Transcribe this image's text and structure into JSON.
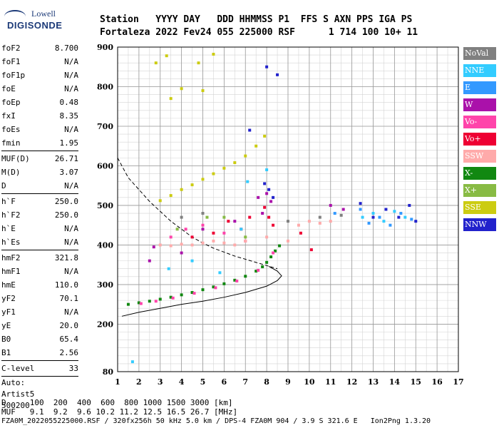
{
  "logo": {
    "brand": "Lowell",
    "name": "DIGISONDE"
  },
  "header": {
    "row1": "Station   YYYY DAY   DDD HHMMSS P1  FFS S AXN PPS IGA PS",
    "row2": "Fortaleza 2022 Fev24 055 225000 RSF      1 714 100 10+ 11"
  },
  "params": {
    "group1": [
      {
        "k": "foF2",
        "v": "8.700"
      },
      {
        "k": "foF1",
        "v": "N/A"
      },
      {
        "k": "foF1p",
        "v": "N/A"
      },
      {
        "k": "foE",
        "v": "N/A"
      },
      {
        "k": "foEp",
        "v": "0.48"
      },
      {
        "k": "fxI",
        "v": "8.35"
      },
      {
        "k": "foEs",
        "v": "N/A"
      },
      {
        "k": "fmin",
        "v": "1.95"
      }
    ],
    "group2": [
      {
        "k": "MUF(D)",
        "v": "26.71"
      },
      {
        "k": "M(D)",
        "v": "3.07"
      },
      {
        "k": "D",
        "v": "N/A"
      }
    ],
    "group3": [
      {
        "k": "h`F",
        "v": "250.0"
      },
      {
        "k": "h`F2",
        "v": "250.0"
      },
      {
        "k": "h`E",
        "v": "N/A"
      },
      {
        "k": "h`Es",
        "v": "N/A"
      }
    ],
    "group4": [
      {
        "k": "hmF2",
        "v": "321.8"
      },
      {
        "k": "hmF1",
        "v": "N/A"
      },
      {
        "k": "hmE",
        "v": "110.0"
      },
      {
        "k": "yF2",
        "v": "70.1"
      },
      {
        "k": "yF1",
        "v": "N/A"
      },
      {
        "k": "yE",
        "v": "20.0"
      },
      {
        "k": "B0",
        "v": "65.4"
      },
      {
        "k": "B1",
        "v": "2.56"
      }
    ],
    "group5": [
      {
        "k": "C-level",
        "v": "33"
      }
    ],
    "auto": [
      "Auto:",
      "Artist5",
      "500200"
    ]
  },
  "legend": [
    {
      "label": "NoVal",
      "color": "#808080"
    },
    {
      "label": "NNE",
      "color": "#33ccff"
    },
    {
      "label": "E",
      "color": "#3399ff"
    },
    {
      "label": "W",
      "color": "#aa11aa"
    },
    {
      "label": "Vo-",
      "color": "#ff44aa"
    },
    {
      "label": "Vo+",
      "color": "#ee0033"
    },
    {
      "label": "SSW",
      "color": "#ffaaaa"
    },
    {
      "label": "X-",
      "color": "#118811"
    },
    {
      "label": "X+",
      "color": "#88bb44"
    },
    {
      "label": "SSE",
      "color": "#cccc11"
    },
    {
      "label": "NNW",
      "color": "#2222cc"
    }
  ],
  "footer": {
    "row1": "D     100  200  400  600  800 1000 1500 3000 [km]",
    "row2": "MUF   9.1  9.2  9.6 10.2 11.2 12.5 16.5 26.7 [MHz]",
    "row3": "FZA0M_2022055225000.RSF / 320fx256h 50 kHz 5.0 km / DPS-4 FZA0M 904 / 3.9 S 321.6 E   Ion2Png 1.3.20"
  },
  "chart_data": {
    "type": "scatter",
    "xlim": [
      1,
      17
    ],
    "ylim": [
      80,
      900
    ],
    "x_ticks": [
      1,
      2,
      3,
      4,
      5,
      6,
      7,
      8,
      9,
      10,
      11,
      12,
      13,
      14,
      15,
      16,
      17
    ],
    "y_ticks": [
      80,
      200,
      300,
      400,
      500,
      600,
      700,
      800,
      900
    ],
    "grid": true,
    "series": [
      {
        "name": "X-",
        "color": "#118811",
        "points": [
          [
            1.5,
            250
          ],
          [
            2,
            254
          ],
          [
            2.5,
            258
          ],
          [
            3,
            263
          ],
          [
            3.5,
            268
          ],
          [
            4,
            274
          ],
          [
            4.5,
            280
          ],
          [
            5,
            287
          ],
          [
            5.5,
            294
          ],
          [
            6,
            302
          ],
          [
            6.5,
            311
          ],
          [
            7,
            321
          ],
          [
            7.5,
            334
          ],
          [
            7.8,
            345
          ],
          [
            8,
            356
          ],
          [
            8.2,
            370
          ],
          [
            8.4,
            385
          ],
          [
            8.6,
            398
          ]
        ]
      },
      {
        "name": "SSE",
        "color": "#cccc11",
        "points": [
          [
            3,
            512
          ],
          [
            3.5,
            525
          ],
          [
            4,
            540
          ],
          [
            4.5,
            552
          ],
          [
            5,
            566
          ],
          [
            5.5,
            580
          ],
          [
            6,
            594
          ],
          [
            6.5,
            608
          ],
          [
            7,
            625
          ],
          [
            7.5,
            650
          ],
          [
            7.9,
            675
          ],
          [
            2.8,
            860
          ],
          [
            3.3,
            878
          ],
          [
            4.8,
            860
          ],
          [
            5.5,
            882
          ],
          [
            4,
            795
          ],
          [
            5,
            790
          ],
          [
            3.5,
            770
          ]
        ]
      },
      {
        "name": "Vo+",
        "color": "#ee0033",
        "points": [
          [
            7.9,
            495
          ],
          [
            8.1,
            470
          ],
          [
            8.3,
            450
          ],
          [
            6.2,
            460
          ],
          [
            6.8,
            440
          ],
          [
            4.5,
            420
          ],
          [
            5.5,
            430
          ],
          [
            10.1,
            388
          ],
          [
            9.6,
            430
          ],
          [
            7.2,
            470
          ]
        ]
      },
      {
        "name": "Vo-",
        "color": "#ff44aa",
        "points": [
          [
            2.1,
            252
          ],
          [
            2.8,
            258
          ],
          [
            3.6,
            266
          ],
          [
            4.6,
            278
          ],
          [
            5.6,
            292
          ],
          [
            6.6,
            309
          ],
          [
            7.6,
            336
          ],
          [
            8.3,
            380
          ],
          [
            3.5,
            420
          ],
          [
            4.2,
            440
          ],
          [
            5,
            450
          ],
          [
            6,
            430
          ],
          [
            7,
            410
          ]
        ]
      },
      {
        "name": "SSW",
        "color": "#ffaaaa",
        "points": [
          [
            3,
            400
          ],
          [
            3.5,
            398
          ],
          [
            4,
            402
          ],
          [
            4.5,
            400
          ],
          [
            5,
            405
          ],
          [
            5.5,
            410
          ],
          [
            6,
            405
          ],
          [
            6.5,
            400
          ],
          [
            7,
            410
          ],
          [
            8,
            420
          ],
          [
            9,
            410
          ],
          [
            9.5,
            450
          ],
          [
            10,
            460
          ],
          [
            10.5,
            455
          ],
          [
            11,
            460
          ]
        ]
      },
      {
        "name": "NNE",
        "color": "#33ccff",
        "points": [
          [
            1.7,
            105
          ],
          [
            3.4,
            340
          ],
          [
            4.5,
            360
          ],
          [
            5.8,
            330
          ],
          [
            6.8,
            440
          ],
          [
            7.1,
            560
          ],
          [
            8,
            590
          ],
          [
            12.5,
            470
          ],
          [
            13,
            480
          ],
          [
            13.5,
            460
          ],
          [
            14,
            485
          ],
          [
            14.5,
            470
          ]
        ]
      },
      {
        "name": "E",
        "color": "#3399ff",
        "points": [
          [
            12.4,
            490
          ],
          [
            12.8,
            455
          ],
          [
            13.3,
            470
          ],
          [
            13.8,
            450
          ],
          [
            14.3,
            480
          ],
          [
            14.8,
            465
          ],
          [
            11.2,
            480
          ]
        ]
      },
      {
        "name": "W",
        "color": "#aa11aa",
        "points": [
          [
            8,
            530
          ],
          [
            8.2,
            510
          ],
          [
            7.8,
            480
          ],
          [
            7.6,
            520
          ],
          [
            6.5,
            460
          ],
          [
            5,
            440
          ],
          [
            4,
            380
          ],
          [
            11,
            500
          ],
          [
            11.6,
            490
          ],
          [
            2.5,
            360
          ],
          [
            2.7,
            395
          ]
        ]
      },
      {
        "name": "NNW",
        "color": "#2222cc",
        "points": [
          [
            7.9,
            555
          ],
          [
            8.1,
            540
          ],
          [
            8.3,
            520
          ],
          [
            12.4,
            505
          ],
          [
            13,
            470
          ],
          [
            13.6,
            490
          ],
          [
            14.2,
            470
          ],
          [
            14.7,
            500
          ],
          [
            15,
            460
          ],
          [
            8,
            850
          ],
          [
            8.5,
            830
          ],
          [
            7.2,
            690
          ]
        ]
      },
      {
        "name": "X+",
        "color": "#88bb44",
        "points": [
          [
            6,
            470
          ],
          [
            7,
            420
          ],
          [
            5.2,
            470
          ],
          [
            3.8,
            440
          ]
        ]
      },
      {
        "name": "NoVal",
        "color": "#808080",
        "points": [
          [
            4,
            470
          ],
          [
            5,
            480
          ],
          [
            9,
            460
          ],
          [
            10.5,
            470
          ],
          [
            11.5,
            475
          ]
        ]
      }
    ],
    "solid_profile": [
      [
        1.2,
        220
      ],
      [
        2,
        230
      ],
      [
        3,
        240
      ],
      [
        4,
        250
      ],
      [
        5,
        258
      ],
      [
        6,
        268
      ],
      [
        7,
        280
      ],
      [
        8,
        296
      ],
      [
        8.5,
        310
      ],
      [
        8.7,
        322
      ],
      [
        8.5,
        334
      ],
      [
        8.1,
        346
      ]
    ],
    "dashed_profile": [
      [
        1,
        620
      ],
      [
        1.5,
        570
      ],
      [
        2,
        540
      ],
      [
        2.5,
        510
      ],
      [
        3,
        485
      ],
      [
        3.5,
        460
      ],
      [
        4,
        440
      ],
      [
        4.5,
        420
      ],
      [
        5,
        405
      ],
      [
        5.5,
        392
      ],
      [
        6,
        382
      ],
      [
        6.5,
        372
      ],
      [
        7,
        364
      ],
      [
        7.5,
        356
      ],
      [
        8,
        348
      ],
      [
        8.5,
        340
      ]
    ]
  }
}
